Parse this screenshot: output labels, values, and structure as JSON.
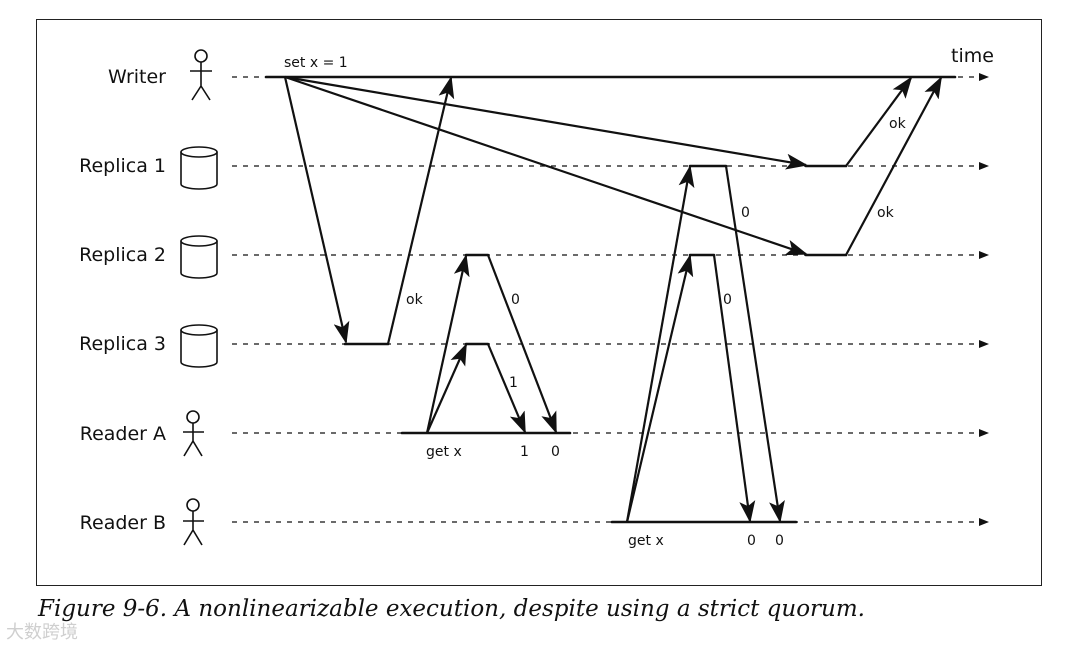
{
  "participants": [
    {
      "label": "Writer",
      "kind": "user"
    },
    {
      "label": "Replica 1",
      "kind": "database"
    },
    {
      "label": "Replica 2",
      "kind": "database"
    },
    {
      "label": "Replica 3",
      "kind": "database"
    },
    {
      "label": "Reader A",
      "kind": "user"
    },
    {
      "label": "Reader B",
      "kind": "user"
    }
  ],
  "time_label": "time",
  "operations": {
    "writer": "set x = 1",
    "reader_a": "get x",
    "reader_b": "get x"
  },
  "message_labels": {
    "r3_ok": "ok",
    "r1_ok": "ok",
    "r2_ok": "ok",
    "r2_to_a": "0",
    "r3_to_a": "1",
    "r1_to_b": "0",
    "r2_to_b": "0"
  },
  "results": {
    "reader_a_first": "1",
    "reader_a_second": "0",
    "reader_b_first": "0",
    "reader_b_second": "0"
  },
  "caption": "Figure 9-6. A nonlinearizable execution, despite using a strict quorum.",
  "watermark": "大数跨境"
}
